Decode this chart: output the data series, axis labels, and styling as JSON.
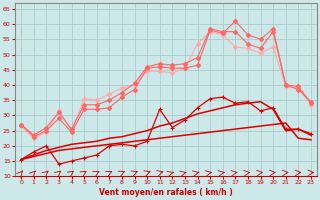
{
  "background_color": "#cce8e8",
  "grid_color": "#aacccc",
  "xlabel": "Vent moyen/en rafales ( km/h )",
  "xlim": [
    -0.5,
    23.5
  ],
  "ylim": [
    10,
    67
  ],
  "yticks": [
    10,
    15,
    20,
    25,
    30,
    35,
    40,
    45,
    50,
    55,
    60,
    65
  ],
  "xticks": [
    0,
    1,
    2,
    3,
    4,
    5,
    6,
    7,
    8,
    9,
    10,
    11,
    12,
    13,
    14,
    15,
    16,
    17,
    18,
    19,
    20,
    21,
    22,
    23
  ],
  "x": [
    0,
    1,
    2,
    3,
    4,
    5,
    6,
    7,
    8,
    9,
    10,
    11,
    12,
    13,
    14,
    15,
    16,
    17,
    18,
    19,
    20,
    21,
    22,
    23
  ],
  "line_avg_low": [
    15.5,
    16.5,
    17.5,
    18.5,
    19.0,
    19.5,
    20.0,
    20.5,
    21.0,
    21.5,
    22.0,
    22.5,
    23.0,
    23.5,
    24.0,
    24.5,
    25.0,
    25.5,
    26.0,
    26.5,
    27.0,
    27.5,
    22.5,
    22.0
  ],
  "line_avg_high": [
    15.5,
    17.0,
    18.5,
    19.5,
    20.5,
    21.0,
    21.5,
    22.5,
    23.0,
    24.0,
    25.0,
    26.5,
    27.5,
    29.0,
    30.5,
    31.5,
    32.5,
    33.5,
    34.0,
    34.5,
    32.0,
    25.0,
    25.5,
    23.5
  ],
  "line_gust_jagged": [
    15.5,
    18.0,
    20.0,
    14.0,
    15.0,
    16.0,
    17.0,
    20.0,
    20.5,
    20.0,
    21.5,
    32.0,
    26.0,
    28.5,
    32.5,
    35.5,
    36.0,
    34.0,
    34.5,
    31.5,
    32.5,
    25.5,
    25.5,
    24.0
  ],
  "line_upper1": [
    27.0,
    23.0,
    25.0,
    29.0,
    24.5,
    32.0,
    32.0,
    32.5,
    36.0,
    38.5,
    45.5,
    46.0,
    45.5,
    45.5,
    46.5,
    58.0,
    57.0,
    61.0,
    56.5,
    55.0,
    58.5,
    40.0,
    38.5,
    34.5
  ],
  "line_upper2": [
    27.0,
    23.5,
    26.0,
    31.0,
    25.5,
    33.5,
    33.5,
    35.0,
    37.5,
    40.5,
    46.0,
    47.0,
    46.5,
    47.0,
    49.0,
    58.5,
    57.5,
    57.5,
    53.5,
    52.0,
    57.5,
    40.0,
    39.5,
    34.0
  ],
  "line_upper3": [
    26.5,
    22.5,
    24.5,
    31.5,
    25.0,
    35.5,
    35.0,
    37.0,
    39.0,
    40.0,
    44.5,
    44.5,
    44.0,
    45.5,
    53.5,
    57.5,
    56.5,
    52.5,
    52.0,
    50.5,
    52.5,
    39.5,
    39.0,
    33.5
  ],
  "col_dark": "#dd0000",
  "col_mid": "#ff6666",
  "col_light": "#ffaaaa"
}
